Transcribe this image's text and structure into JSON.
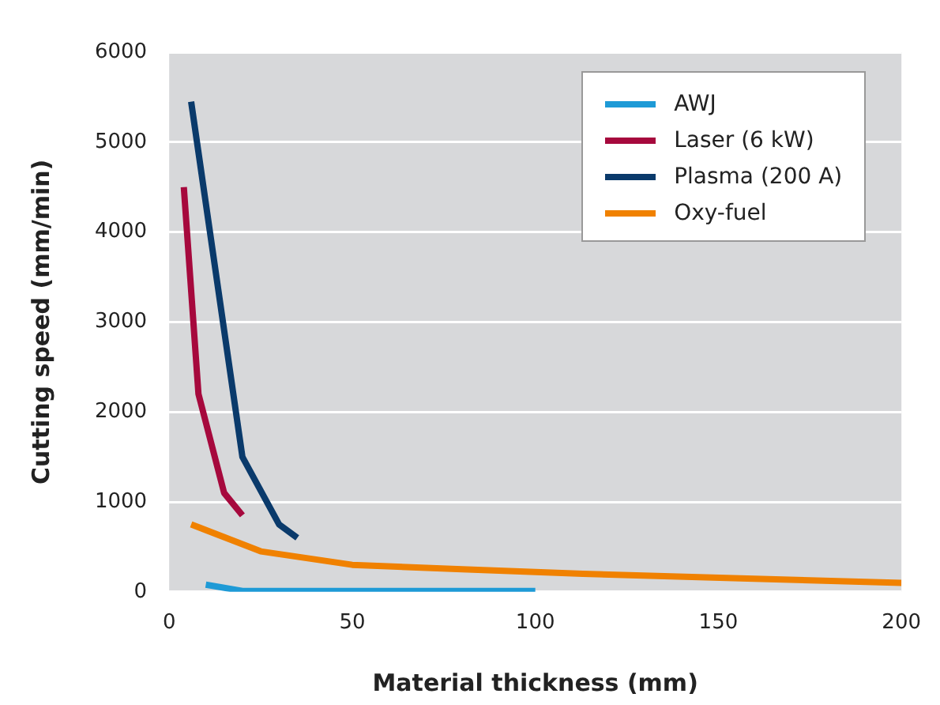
{
  "chart_data": {
    "type": "line",
    "xlabel": "Material thickness (mm)",
    "ylabel": "Cutting speed (mm/min)",
    "xlim": [
      0,
      200
    ],
    "xticks": [
      0,
      50,
      100,
      150,
      200
    ],
    "ylim": [
      0,
      6000
    ],
    "yticks": [
      0,
      1000,
      2000,
      3000,
      4000,
      5000,
      6000
    ],
    "grid": "y",
    "legend": "top right",
    "marker": "none",
    "line_style": "solid",
    "series": [
      {
        "name": "AWJ",
        "color": "#1e9ad6",
        "x": [
          10,
          20,
          100
        ],
        "values": [
          80,
          10,
          10
        ]
      },
      {
        "name": "Laser (6 kW)",
        "color": "#a6093d",
        "x": [
          4,
          8,
          15,
          20
        ],
        "values": [
          4500,
          2200,
          1100,
          850
        ]
      },
      {
        "name": "Plasma (200 A)",
        "color": "#0a3a6b",
        "x": [
          6,
          20,
          30,
          35
        ],
        "values": [
          5450,
          1500,
          750,
          600
        ]
      },
      {
        "name": "Oxy-fuel",
        "color": "#f08100",
        "x": [
          6,
          25,
          50,
          80,
          113,
          156,
          200
        ],
        "values": [
          750,
          450,
          300,
          250,
          200,
          150,
          100
        ]
      }
    ]
  }
}
